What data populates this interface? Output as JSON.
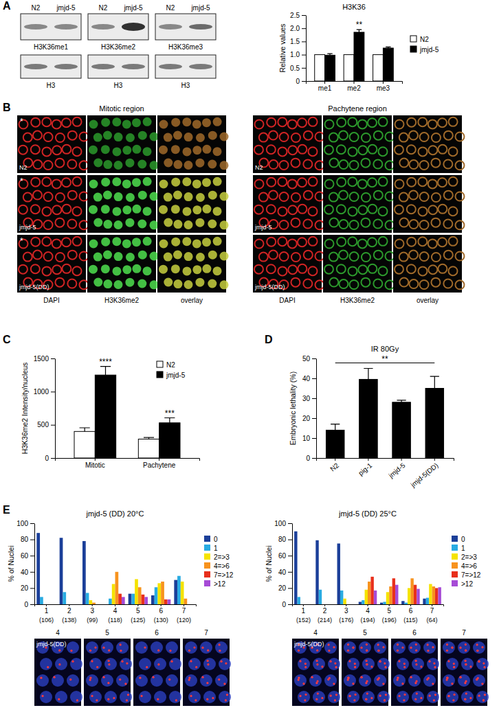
{
  "panel_labels": [
    "A",
    "B",
    "C",
    "D",
    "E"
  ],
  "blots": {
    "lanes": [
      "N2",
      "jmjd-5"
    ],
    "targets": [
      "H3K36me1",
      "H3K36me2",
      "H3K36me3"
    ],
    "loading": "H3"
  },
  "micrographs": {
    "regions": [
      "Mitotic region",
      "Pachytene region"
    ],
    "strains": [
      "N2",
      "jmjd-5",
      "jmjd-5(DD)"
    ],
    "channels": [
      "DAPI",
      "H3K36me2",
      "overlay"
    ],
    "germline_mark": "*"
  },
  "foci_images": {
    "strain": "jmjd-5(DD)",
    "zones": [
      "4",
      "5",
      "6",
      "7"
    ]
  },
  "chart_data": [
    {
      "type": "bar",
      "title": "H3K36",
      "y_label": "Relative values",
      "categories": [
        "me1",
        "me2",
        "me3"
      ],
      "series": [
        {
          "name": "N2",
          "color": "#ffffff",
          "values": [
            1,
            1,
            1
          ]
        },
        {
          "name": "jmjd-5",
          "color": "#000000",
          "values": [
            0.98,
            1.85,
            1.25
          ],
          "errors": [
            0.06,
            0.1,
            0.04
          ]
        }
      ],
      "ylim": [
        0,
        2.5
      ],
      "yticks": [
        0,
        0.5,
        {
          "value": 1,
          "label": "1.0"
        },
        1.5,
        {
          "value": 2,
          "label": "2.0"
        },
        2.5
      ],
      "legend": "right",
      "annotations": [
        {
          "text": "**",
          "category": 1
        }
      ]
    },
    {
      "type": "bar",
      "y_label": "H3K36me2 Intensity/nucleus",
      "categories": [
        "Mitotic",
        "Pachytene"
      ],
      "series": [
        {
          "name": "N2",
          "color": "#ffffff",
          "values": [
            400,
            285
          ],
          "errors": [
            55,
            25
          ]
        },
        {
          "name": "jmjd-5",
          "color": "#000000",
          "values": [
            1250,
            530
          ],
          "errors": [
            130,
            75
          ]
        }
      ],
      "ylim": [
        0,
        1500
      ],
      "yticks": [
        0,
        500,
        1000,
        1500
      ],
      "legend": "top-right",
      "annotations": [
        {
          "text": "****",
          "category": 0
        },
        {
          "text": "***",
          "category": 1
        }
      ]
    },
    {
      "type": "bar",
      "title": "IR 80Gy",
      "y_label": "Embryonic lethality (%)",
      "categories": [
        "N2",
        "pig-1",
        "jmjd-5",
        "jmjd-5(DD)"
      ],
      "values": [
        14,
        39.5,
        28,
        35
      ],
      "errors": [
        3,
        5.5,
        1,
        6
      ],
      "color": "#000000",
      "ylim": [
        0,
        50
      ],
      "yticks": [
        0,
        10,
        20,
        30,
        40,
        50
      ],
      "annotations": [
        {
          "text": "**",
          "from": 0,
          "to": 3
        }
      ]
    },
    {
      "type": "bar",
      "title": "jmjd-5 (DD) 20°C",
      "y_label": "% of Nuclei",
      "categories": [
        "1",
        "2",
        "3",
        "4",
        "5",
        "6",
        "7"
      ],
      "count_labels": [
        "(106)",
        "(138)",
        "(99)",
        "(118)",
        "(125)",
        "(130)",
        "(120)"
      ],
      "series": [
        {
          "name": "0",
          "color": "#1b3f99",
          "values": [
            88,
            82,
            78,
            0,
            13,
            11,
            30
          ]
        },
        {
          "name": "1",
          "color": "#29abe2",
          "values": [
            9,
            15,
            14,
            7,
            13,
            21,
            35
          ]
        },
        {
          "name": "2=>3",
          "color": "#f5e300",
          "values": [
            0,
            0,
            5,
            25,
            31,
            26,
            28
          ]
        },
        {
          "name": "4=>6",
          "color": "#f7931e",
          "values": [
            0,
            0,
            2,
            40,
            21,
            28,
            7
          ]
        },
        {
          "name": "7=>12",
          "color": "#e8301c",
          "values": [
            0,
            0,
            0,
            13,
            12,
            6,
            0
          ]
        },
        {
          "name": ">12",
          "color": "#a64bd6",
          "values": [
            0,
            0,
            0,
            9,
            9,
            6,
            0
          ]
        }
      ],
      "ylim": [
        0,
        100
      ],
      "yticks": [
        0,
        20,
        40,
        60,
        80,
        100
      ],
      "legend": "right"
    },
    {
      "type": "bar",
      "title": "jmjd-5 (DD) 25°C",
      "y_label": "% of Nuclei",
      "categories": [
        "1",
        "2",
        "3",
        "4",
        "5",
        "6",
        "7"
      ],
      "count_labels": [
        "(152)",
        "(214)",
        "(176)",
        "(194)",
        "(196)",
        "(115)",
        "(64)"
      ],
      "series": [
        {
          "name": "0",
          "color": "#1b3f99",
          "values": [
            90,
            79,
            75,
            3,
            2,
            4,
            7
          ]
        },
        {
          "name": "1",
          "color": "#29abe2",
          "values": [
            9,
            18,
            17,
            5,
            3,
            2,
            8
          ]
        },
        {
          "name": "2=>3",
          "color": "#f5e300",
          "values": [
            0,
            0,
            7,
            18,
            15,
            20,
            25
          ]
        },
        {
          "name": "4=>6",
          "color": "#f7931e",
          "values": [
            0,
            0,
            0,
            28,
            22,
            32,
            22
          ]
        },
        {
          "name": "7=>12",
          "color": "#e8301c",
          "values": [
            0,
            0,
            0,
            34,
            32,
            24,
            20
          ]
        },
        {
          "name": ">12",
          "color": "#a64bd6",
          "values": [
            0,
            0,
            0,
            17,
            24,
            19,
            21
          ]
        }
      ],
      "ylim": [
        0,
        100
      ],
      "yticks": [
        0,
        20,
        40,
        60,
        80,
        100
      ],
      "legend": "right"
    }
  ]
}
